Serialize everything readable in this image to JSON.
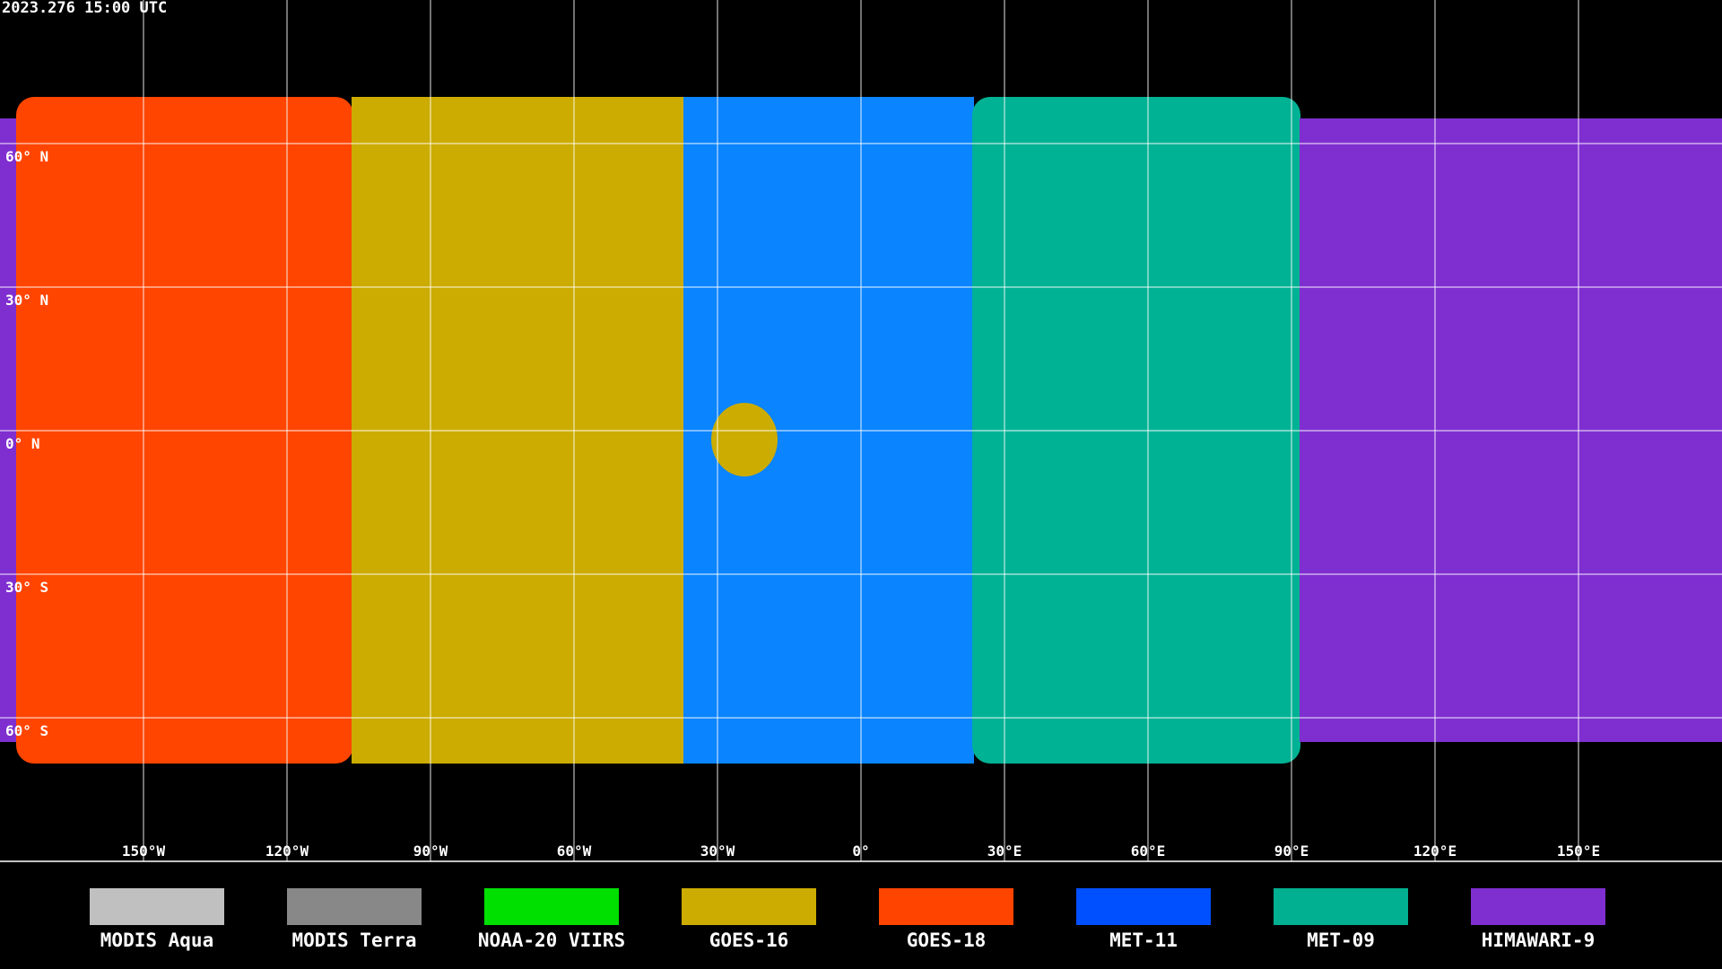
{
  "header": {
    "timestamp": "2023.276 15:00 UTC"
  },
  "map": {
    "lat_labels": [
      "60° N",
      "30° N",
      "0° N",
      "30° S",
      "60° S"
    ],
    "lon_labels": [
      "150°W",
      "120°W",
      "90°W",
      "60°W",
      "30°W",
      "0°",
      "30°E",
      "60°E",
      "90°E",
      "120°E",
      "150°E"
    ]
  },
  "legend": [
    {
      "name": "MODIS Aqua",
      "color": "#c0c0c0"
    },
    {
      "name": "MODIS Terra",
      "color": "#888888"
    },
    {
      "name": "NOAA-20 VIIRS",
      "color": "#00e000"
    },
    {
      "name": "GOES-16",
      "color": "#ccac00"
    },
    {
      "name": "GOES-18",
      "color": "#ff4400"
    },
    {
      "name": "MET-11",
      "color": "#0050ff"
    },
    {
      "name": "MET-09",
      "color": "#00b090"
    },
    {
      "name": "HIMAWARI-9",
      "color": "#7f2fd0"
    }
  ]
}
